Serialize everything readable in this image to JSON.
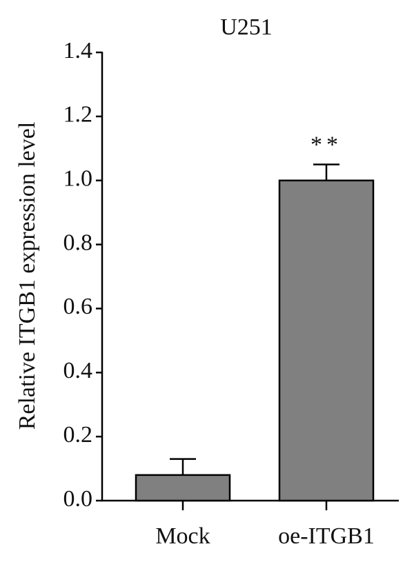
{
  "chart_data": {
    "type": "bar",
    "title": "U251",
    "y_label": "Relative ITGB1 expression level",
    "categories": [
      "Mock",
      "oe-ITGB1"
    ],
    "values": [
      0.08,
      1.0
    ],
    "errors": [
      0.05,
      0.05
    ],
    "color": "#808080",
    "annotation": "**",
    "ylim": [
      0,
      1.4
    ],
    "yticks": [
      {
        "value": 0,
        "label": "0.0"
      },
      0.2,
      0.4,
      0.6,
      0.8,
      {
        "value": 1,
        "label": "1.0"
      },
      1.2,
      1.4
    ],
    "grid": false
  }
}
